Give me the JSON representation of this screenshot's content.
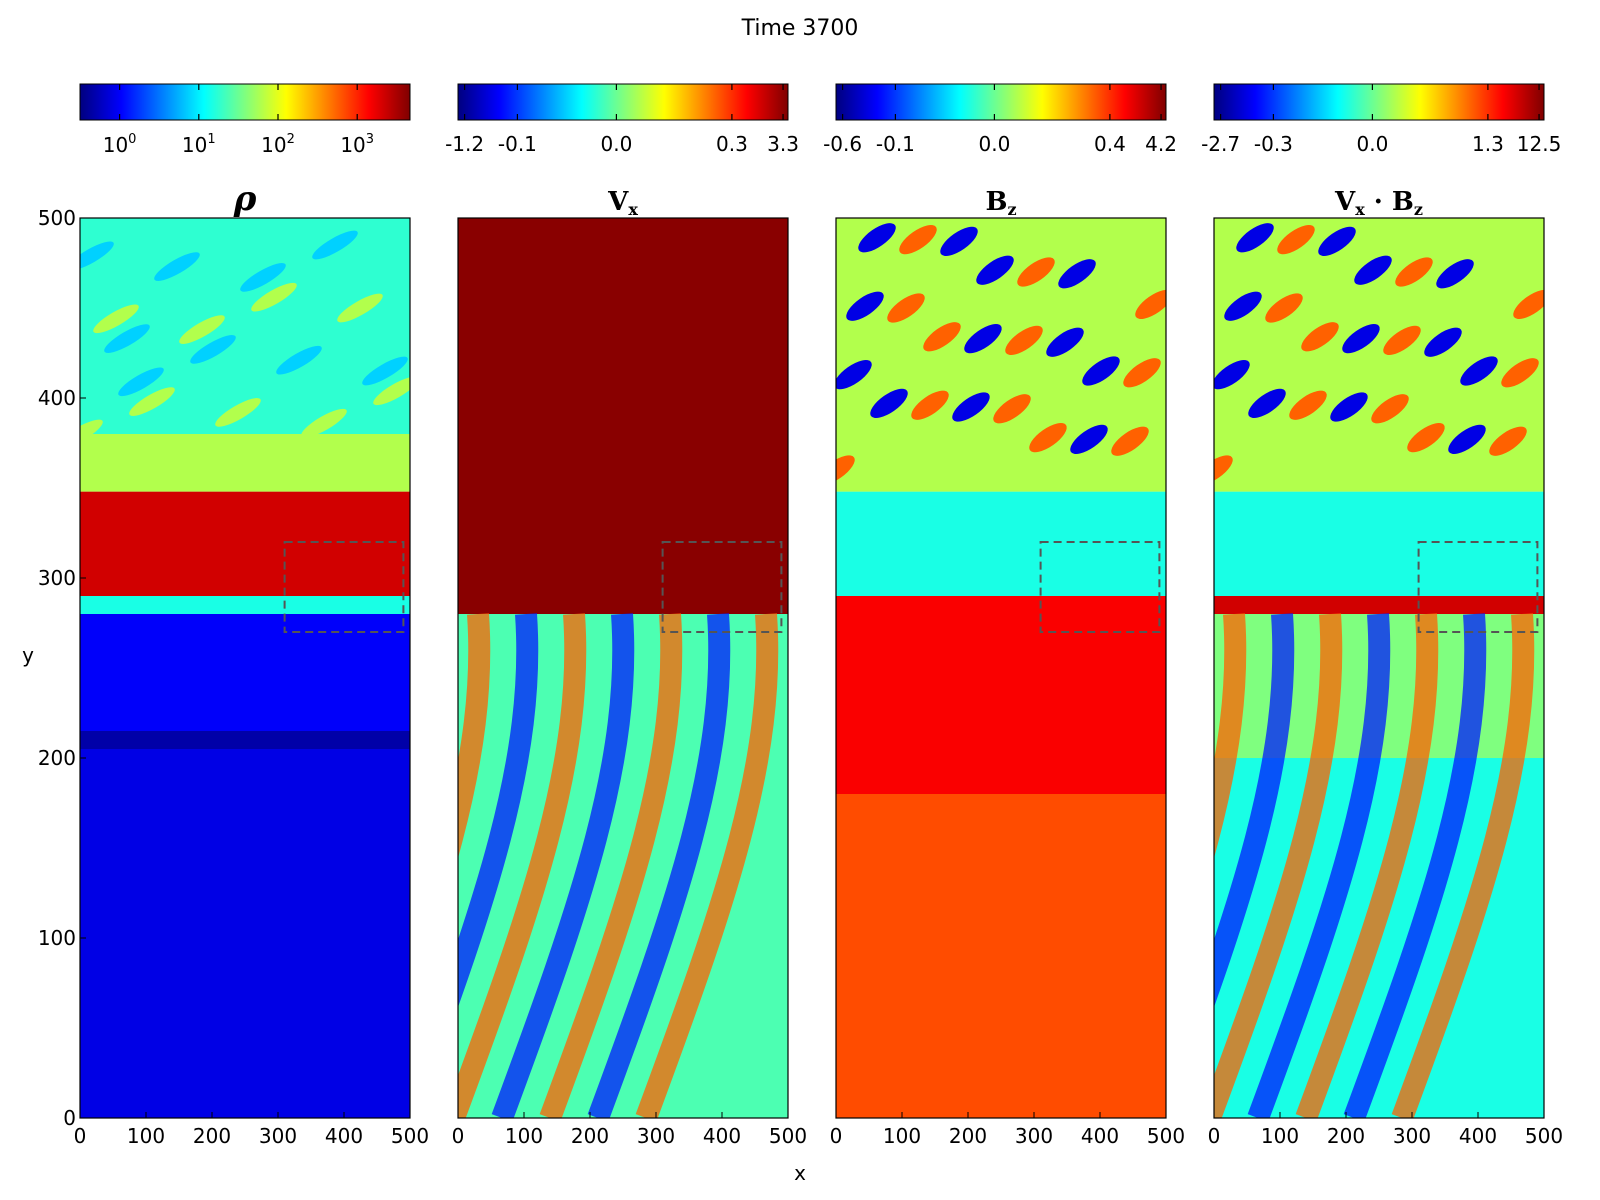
{
  "figure": {
    "title": "Time 3700",
    "xlabel": "x",
    "ylabel": "y"
  },
  "colors": {
    "jet": [
      "#00007f",
      "#0000ff",
      "#007fff",
      "#00ffff",
      "#7fff7f",
      "#ffff00",
      "#ff7f00",
      "#ff0000",
      "#7f0000"
    ],
    "box_line": "#555555",
    "frame": "#000000"
  },
  "chart_data": [
    {
      "type": "heatmap",
      "title": "ρ",
      "xlim": [
        0,
        500
      ],
      "ylim": [
        0,
        500
      ],
      "xticks": [
        "0",
        "100",
        "200",
        "300",
        "400",
        "500"
      ],
      "yticks": [
        "0",
        "100",
        "200",
        "300",
        "400",
        "500"
      ],
      "colorbar": {
        "scale": "log",
        "ticks": [
          {
            "base": "10",
            "exp": "0"
          },
          {
            "base": "10",
            "exp": "1"
          },
          {
            "base": "10",
            "exp": "2"
          },
          {
            "base": "10",
            "exp": "3"
          }
        ]
      },
      "regions": [
        {
          "y": [
            0,
            205
          ],
          "level": 0.1
        },
        {
          "y": [
            205,
            215
          ],
          "level": 0.04
        },
        {
          "y": [
            215,
            280
          ],
          "level": 0.12
        },
        {
          "y": [
            280,
            290
          ],
          "level": 0.4
        },
        {
          "y": [
            290,
            348
          ],
          "level": 0.92
        },
        {
          "y": [
            348,
            380
          ],
          "level": 0.55
        },
        {
          "y": [
            380,
            500
          ],
          "level": 0.42
        }
      ],
      "inset_box": {
        "x": [
          310,
          490
        ],
        "y": [
          270,
          320
        ]
      }
    },
    {
      "type": "heatmap",
      "title": "Vx",
      "title_main": "V",
      "title_sub": "x",
      "xlim": [
        0,
        500
      ],
      "ylim": [
        0,
        500
      ],
      "xticks": [
        "0",
        "100",
        "200",
        "300",
        "400",
        "500"
      ],
      "colorbar": {
        "scale": "symlog",
        "ticks": [
          "-1.2",
          "-0.1",
          "0.0",
          "0.3",
          "3.3"
        ]
      },
      "regions": [
        {
          "y": [
            0,
            280
          ],
          "level": 0.45
        },
        {
          "y": [
            280,
            500
          ],
          "level": 0.99
        }
      ],
      "inset_box": {
        "x": [
          310,
          490
        ],
        "y": [
          270,
          320
        ]
      }
    },
    {
      "type": "heatmap",
      "title": "Bz",
      "title_main": "B",
      "title_sub": "z",
      "xlim": [
        0,
        500
      ],
      "ylim": [
        0,
        500
      ],
      "xticks": [
        "0",
        "100",
        "200",
        "300",
        "400",
        "500"
      ],
      "colorbar": {
        "scale": "symlog",
        "ticks": [
          "-0.6",
          "-0.1",
          "0.0",
          "0.4",
          "4.2"
        ]
      },
      "regions": [
        {
          "y": [
            0,
            180
          ],
          "level": 0.8
        },
        {
          "y": [
            180,
            290
          ],
          "level": 0.88
        },
        {
          "y": [
            290,
            348
          ],
          "level": 0.4
        },
        {
          "y": [
            348,
            500
          ],
          "level": 0.55
        }
      ],
      "inset_box": {
        "x": [
          310,
          490
        ],
        "y": [
          270,
          320
        ]
      }
    },
    {
      "type": "heatmap",
      "title": "Vx · Bz",
      "title_parts": [
        "V",
        "x",
        " · B",
        "z"
      ],
      "xlim": [
        0,
        500
      ],
      "ylim": [
        0,
        500
      ],
      "xticks": [
        "0",
        "100",
        "200",
        "300",
        "400",
        "500"
      ],
      "colorbar": {
        "scale": "symlog",
        "ticks": [
          "-2.7",
          "-0.3",
          "0.0",
          "1.3",
          "12.5"
        ]
      },
      "regions": [
        {
          "y": [
            0,
            200
          ],
          "level": 0.4
        },
        {
          "y": [
            200,
            280
          ],
          "level": 0.5
        },
        {
          "y": [
            280,
            290
          ],
          "level": 0.92
        },
        {
          "y": [
            290,
            348
          ],
          "level": 0.4
        },
        {
          "y": [
            348,
            500
          ],
          "level": 0.55
        }
      ],
      "inset_box": {
        "x": [
          310,
          490
        ],
        "y": [
          270,
          320
        ]
      }
    }
  ]
}
